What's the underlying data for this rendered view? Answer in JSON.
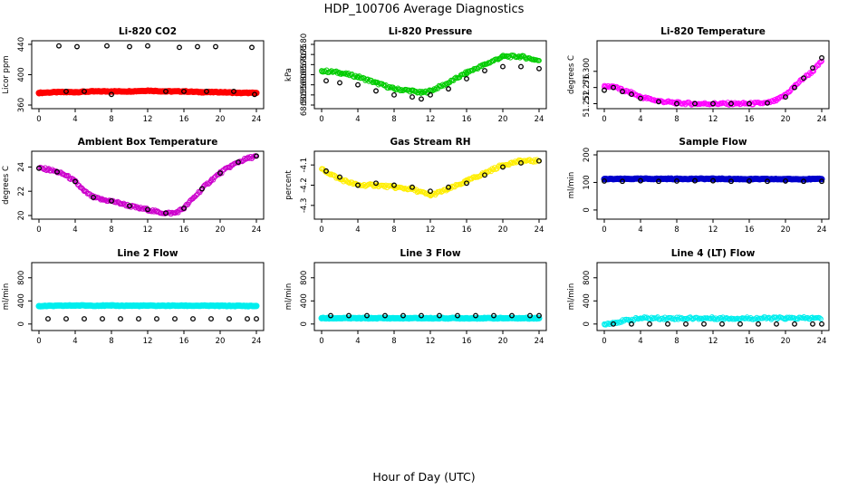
{
  "figure": {
    "title": "HDP_100706  Average Diagnostics",
    "xlabel": "Hour of Day (UTC)"
  },
  "chart_data": [
    {
      "type": "scatter",
      "title": "Li-820 CO2",
      "xlabel": "Hour of Day (UTC)",
      "ylabel": "Licor ppm",
      "xlim": [
        0,
        24
      ],
      "ylim": [
        360,
        440
      ],
      "xticks": [
        0,
        4,
        8,
        12,
        16,
        20,
        24
      ],
      "yticks": [
        360,
        400,
        440
      ],
      "series": [
        {
          "name": "high-res",
          "color": "#ff0000",
          "marker": "filled",
          "x": [
            0,
            2,
            4,
            6,
            8,
            10,
            12,
            14,
            16,
            18,
            20,
            22,
            24
          ],
          "y": [
            376,
            377,
            377,
            378,
            378,
            378,
            379,
            378,
            378,
            377,
            377,
            376,
            376
          ]
        },
        {
          "name": "average",
          "color": "#000000",
          "marker": "open",
          "x": [
            2.2,
            3.0,
            4.2,
            5.0,
            7.5,
            8.0,
            10.0,
            12.0,
            14.0,
            15.5,
            16.0,
            17.5,
            18.5,
            19.5,
            21.5,
            23.5,
            23.8
          ],
          "y": [
            438,
            378,
            437,
            378,
            438,
            374,
            437,
            438,
            378,
            436,
            378,
            437,
            378,
            437,
            378,
            436,
            374
          ]
        }
      ]
    },
    {
      "type": "scatter",
      "title": "Li-820 Pressure",
      "xlabel": "Hour of Day (UTC)",
      "ylabel": "kPa",
      "xlim": [
        0,
        24
      ],
      "ylim": [
        68.5,
        68.8
      ],
      "xticks": [
        0,
        4,
        8,
        12,
        16,
        20,
        24
      ],
      "yticks": [
        68.5,
        68.55,
        68.6,
        68.65,
        68.7,
        68.75,
        68.8
      ],
      "ytick_labels": [
        "68.50",
        "68.55",
        "68.60",
        "68.65",
        "68.70",
        "68.75",
        "68.80"
      ],
      "series": [
        {
          "name": "high-res",
          "color": "#00cc00",
          "marker": "open",
          "x": [
            0,
            2,
            4,
            6,
            8,
            10,
            11,
            12,
            14,
            16,
            18,
            20,
            22,
            24
          ],
          "y": [
            68.67,
            68.66,
            68.64,
            68.61,
            68.58,
            68.57,
            68.56,
            68.57,
            68.61,
            68.66,
            68.7,
            68.74,
            68.74,
            68.72
          ]
        },
        {
          "name": "average",
          "color": "#000000",
          "marker": "open",
          "x": [
            0.5,
            2,
            4,
            6,
            8,
            10,
            11,
            12,
            14,
            16,
            18,
            20,
            22,
            24
          ],
          "y": [
            68.62,
            68.61,
            68.6,
            68.57,
            68.55,
            68.54,
            68.53,
            68.55,
            68.58,
            68.63,
            68.67,
            68.69,
            68.69,
            68.68
          ]
        }
      ]
    },
    {
      "type": "scatter",
      "title": "Li-820 Temperature",
      "xlabel": "Hour of Day (UTC)",
      "ylabel": "degrees C",
      "xlim": [
        0,
        24
      ],
      "ylim": [
        51.25,
        51.34
      ],
      "xticks": [
        0,
        4,
        8,
        12,
        16,
        20,
        24
      ],
      "yticks": [
        51.252,
        51.276,
        51.3
      ],
      "ytick_labels": [
        "51.252",
        "51.276",
        "51.300"
      ],
      "series": [
        {
          "name": "high-res",
          "color": "#ff00ff",
          "marker": "open",
          "x": [
            0,
            1,
            2,
            3,
            4,
            6,
            8,
            10,
            12,
            14,
            16,
            18,
            19,
            20,
            21,
            22,
            23,
            24
          ],
          "y": [
            51.277,
            51.278,
            51.272,
            51.268,
            51.262,
            51.256,
            51.253,
            51.252,
            51.252,
            51.252,
            51.252,
            51.253,
            51.257,
            51.265,
            51.278,
            51.29,
            51.3,
            51.315
          ]
        },
        {
          "name": "average",
          "color": "#000000",
          "marker": "open",
          "x": [
            0,
            1,
            2,
            3,
            4,
            6,
            8,
            10,
            12,
            14,
            16,
            18,
            20,
            21,
            22,
            23,
            24
          ],
          "y": [
            51.272,
            51.276,
            51.27,
            51.266,
            51.26,
            51.255,
            51.252,
            51.252,
            51.252,
            51.252,
            51.252,
            51.253,
            51.262,
            51.276,
            51.29,
            51.305,
            51.32
          ]
        }
      ]
    },
    {
      "type": "scatter",
      "title": "Ambient Box Temperature",
      "xlabel": "Hour of Day (UTC)",
      "ylabel": "degrees C",
      "xlim": [
        0,
        24
      ],
      "ylim": [
        20,
        25
      ],
      "xticks": [
        0,
        4,
        8,
        12,
        16,
        20,
        24
      ],
      "yticks": [
        20,
        22,
        24
      ],
      "series": [
        {
          "name": "high-res",
          "color": "#cc00cc",
          "marker": "open",
          "x": [
            0,
            1,
            2,
            3,
            4,
            5,
            6,
            7,
            8,
            9,
            10,
            11,
            12,
            13,
            14,
            15,
            16,
            17,
            18,
            19,
            20,
            21,
            22,
            23,
            24
          ],
          "y": [
            23.9,
            23.8,
            23.6,
            23.3,
            22.8,
            22.0,
            21.5,
            21.3,
            21.2,
            21.0,
            20.8,
            20.6,
            20.5,
            20.3,
            20.2,
            20.2,
            20.6,
            21.4,
            22.2,
            22.9,
            23.5,
            24.0,
            24.4,
            24.7,
            24.9
          ]
        },
        {
          "name": "average",
          "color": "#000000",
          "marker": "open",
          "x": [
            0,
            2,
            4,
            6,
            8,
            10,
            12,
            14,
            16,
            18,
            20,
            22,
            24
          ],
          "y": [
            23.9,
            23.6,
            22.8,
            21.5,
            21.2,
            20.8,
            20.5,
            20.2,
            20.6,
            22.2,
            23.5,
            24.4,
            24.9
          ]
        }
      ]
    },
    {
      "type": "scatter",
      "title": "Gas Stream RH",
      "xlabel": "Hour of Day (UTC)",
      "ylabel": "percent",
      "xlim": [
        0,
        24
      ],
      "ylim": [
        -4.35,
        -4.05
      ],
      "xticks": [
        0,
        4,
        8,
        12,
        16,
        20,
        24
      ],
      "yticks": [
        -4.3,
        -4.2,
        -4.1
      ],
      "ytick_labels": [
        "-4.3",
        "-4.2",
        "-4.1"
      ],
      "series": [
        {
          "name": "high-res",
          "color": "#ffee00",
          "marker": "open",
          "x": [
            0,
            2,
            4,
            6,
            8,
            10,
            12,
            14,
            16,
            18,
            20,
            22,
            24
          ],
          "y": [
            -4.12,
            -4.17,
            -4.2,
            -4.2,
            -4.21,
            -4.22,
            -4.25,
            -4.22,
            -4.18,
            -4.14,
            -4.1,
            -4.08,
            -4.08
          ]
        },
        {
          "name": "average",
          "color": "#000000",
          "marker": "open",
          "x": [
            0.5,
            2,
            4,
            6,
            8,
            10,
            12,
            14,
            16,
            18,
            20,
            22,
            24
          ],
          "y": [
            -4.13,
            -4.16,
            -4.2,
            -4.19,
            -4.2,
            -4.21,
            -4.23,
            -4.21,
            -4.19,
            -4.15,
            -4.11,
            -4.09,
            -4.08
          ]
        }
      ]
    },
    {
      "type": "scatter",
      "title": "Sample Flow",
      "xlabel": "Hour of Day (UTC)",
      "ylabel": "ml/min",
      "xlim": [
        0,
        24
      ],
      "ylim": [
        -20,
        200
      ],
      "xticks": [
        0,
        4,
        8,
        12,
        16,
        20,
        24
      ],
      "yticks": [
        0,
        100,
        200
      ],
      "series": [
        {
          "name": "high-res",
          "color": "#0000cc",
          "marker": "filled",
          "x": [
            0,
            4,
            8,
            12,
            16,
            20,
            24
          ],
          "y": [
            112,
            113,
            113,
            113,
            112,
            112,
            112
          ]
        },
        {
          "name": "average",
          "color": "#000000",
          "marker": "open",
          "x": [
            0,
            2,
            4,
            6,
            8,
            10,
            12,
            14,
            16,
            18,
            20,
            22,
            24
          ],
          "y": [
            105,
            104,
            106,
            104,
            105,
            106,
            106,
            104,
            105,
            104,
            105,
            104,
            104
          ]
        }
      ]
    },
    {
      "type": "scatter",
      "title": "Line 2 Flow",
      "xlabel": "Hour of Day (UTC)",
      "ylabel": "ml/min",
      "xlim": [
        0,
        24
      ],
      "ylim": [
        -50,
        1000
      ],
      "xticks": [
        0,
        4,
        8,
        12,
        16,
        20,
        24
      ],
      "yticks": [
        0,
        400,
        800
      ],
      "series": [
        {
          "name": "high-res",
          "color": "#00eeee",
          "marker": "filled",
          "x": [
            0,
            4,
            8,
            12,
            16,
            20,
            24
          ],
          "y": [
            310,
            320,
            318,
            316,
            317,
            315,
            312
          ]
        },
        {
          "name": "average",
          "color": "#000000",
          "marker": "open",
          "x": [
            1,
            3,
            5,
            7,
            9,
            11,
            13,
            15,
            17,
            19,
            21,
            23,
            24
          ],
          "y": [
            90,
            90,
            90,
            90,
            90,
            90,
            90,
            90,
            90,
            90,
            90,
            90,
            90
          ]
        }
      ]
    },
    {
      "type": "scatter",
      "title": "Line 3 Flow",
      "xlabel": "Hour of Day (UTC)",
      "ylabel": "ml/min",
      "xlim": [
        0,
        24
      ],
      "ylim": [
        -50,
        1000
      ],
      "xticks": [
        0,
        4,
        8,
        12,
        16,
        20,
        24
      ],
      "yticks": [
        0,
        400,
        800
      ],
      "series": [
        {
          "name": "high-res",
          "color": "#00eeee",
          "marker": "filled",
          "x": [
            0,
            4,
            8,
            12,
            16,
            20,
            24
          ],
          "y": [
            100,
            100,
            100,
            100,
            100,
            100,
            100
          ]
        },
        {
          "name": "average",
          "color": "#000000",
          "marker": "open",
          "x": [
            1,
            3,
            5,
            7,
            9,
            11,
            13,
            15,
            17,
            19,
            21,
            23,
            24
          ],
          "y": [
            145,
            145,
            145,
            145,
            145,
            145,
            145,
            145,
            145,
            145,
            145,
            145,
            145
          ]
        }
      ]
    },
    {
      "type": "scatter",
      "title": "Line 4 (LT) Flow",
      "xlabel": "Hour of Day (UTC)",
      "ylabel": "ml/min",
      "xlim": [
        0,
        24
      ],
      "ylim": [
        -50,
        1000
      ],
      "xticks": [
        0,
        4,
        8,
        12,
        16,
        20,
        24
      ],
      "yticks": [
        0,
        400,
        800
      ],
      "series": [
        {
          "name": "high-res",
          "color": "#00eeee",
          "marker": "open",
          "x": [
            0,
            4,
            12,
            20
          ],
          "y": [
            0,
            100,
            100,
            100
          ]
        },
        {
          "name": "average",
          "color": "#000000",
          "marker": "open",
          "x": [
            1,
            3,
            5,
            7,
            9,
            11,
            13,
            15,
            17,
            19,
            21,
            23,
            24
          ],
          "y": [
            0,
            0,
            0,
            0,
            0,
            0,
            0,
            0,
            0,
            0,
            0,
            0,
            0
          ]
        }
      ]
    }
  ]
}
